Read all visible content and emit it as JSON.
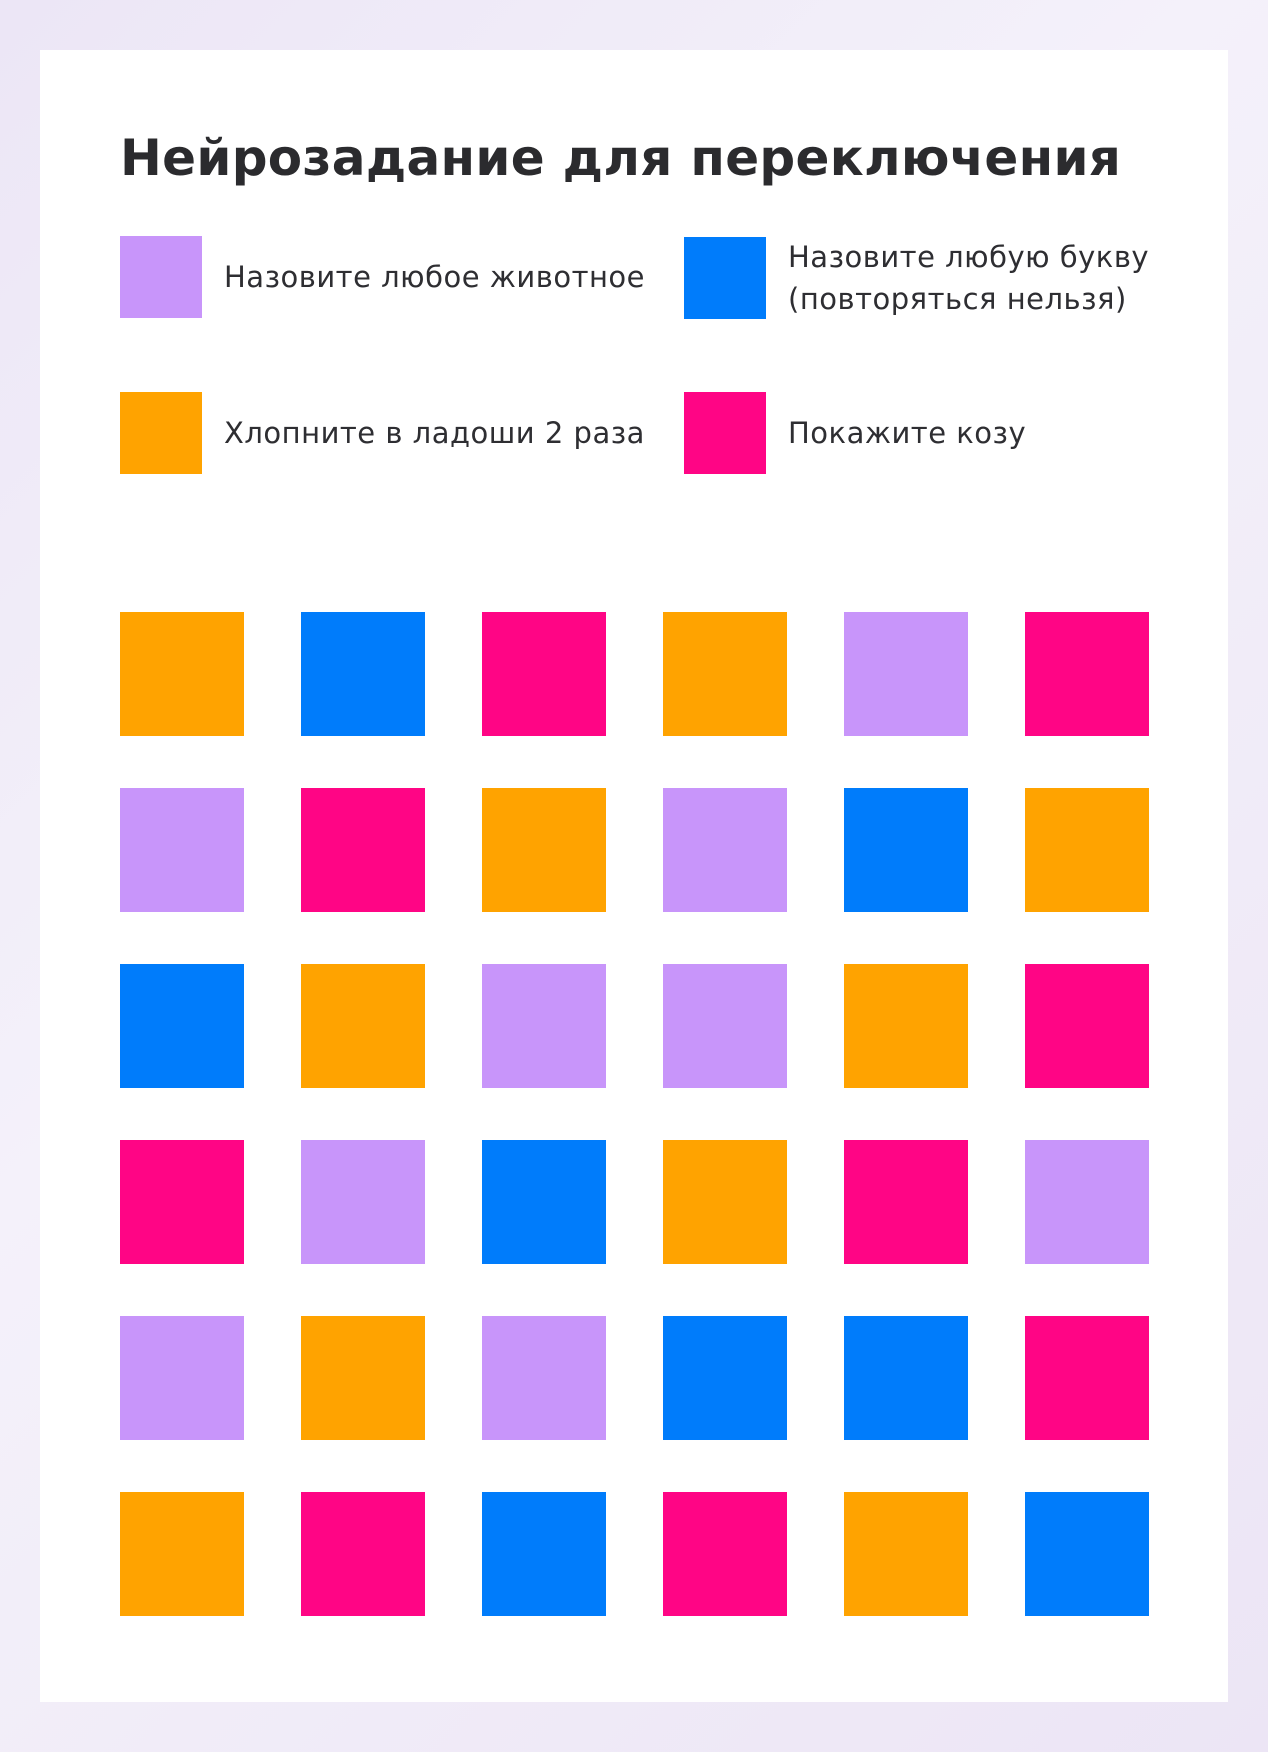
{
  "title": "Нейрозадание для переключения",
  "colors": {
    "purple": "#c895fa",
    "blue": "#007cfb",
    "orange": "#ffa300",
    "pink": "#ff0585"
  },
  "legend": [
    {
      "color": "purple",
      "lines": [
        "Назовите любое животное"
      ]
    },
    {
      "color": "blue",
      "lines": [
        "Назовите любую букву",
        "(повторяться нельзя)"
      ]
    },
    {
      "color": "orange",
      "lines": [
        "Хлопните в ладоши 2 раза"
      ]
    },
    {
      "color": "pink",
      "lines": [
        "Покажите козу"
      ]
    }
  ],
  "grid": [
    [
      "orange",
      "blue",
      "pink",
      "orange",
      "purple",
      "pink"
    ],
    [
      "purple",
      "pink",
      "orange",
      "purple",
      "blue",
      "orange"
    ],
    [
      "blue",
      "orange",
      "purple",
      "purple",
      "orange",
      "pink"
    ],
    [
      "pink",
      "purple",
      "blue",
      "orange",
      "pink",
      "purple"
    ],
    [
      "purple",
      "orange",
      "purple",
      "blue",
      "blue",
      "pink"
    ],
    [
      "orange",
      "pink",
      "blue",
      "pink",
      "orange",
      "blue"
    ]
  ]
}
